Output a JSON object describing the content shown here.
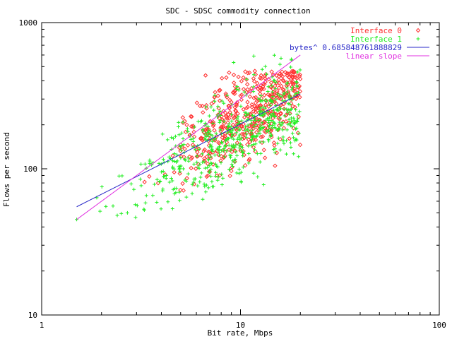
{
  "chart_data": {
    "type": "scatter",
    "title": "SDC - SDSC commodity connection",
    "xlabel": "Bit rate, Mbps",
    "ylabel": "Flows per second",
    "xscale": "log",
    "yscale": "log",
    "xlim": [
      1,
      100
    ],
    "ylim": [
      10,
      1000
    ],
    "xticks": [
      1,
      10,
      100
    ],
    "xtick_labels": [
      "1",
      "10",
      "100"
    ],
    "yticks": [
      10,
      100,
      1000
    ],
    "ytick_labels": [
      "10",
      "100",
      "1000"
    ],
    "grid": false,
    "legend_position": "top-right",
    "series": [
      {
        "name": "Interface 0",
        "kind": "points",
        "marker": "diamond",
        "color": "#ff3030",
        "approximate": true,
        "x_range": [
          3.0,
          20.0
        ],
        "y_range": [
          70,
          470
        ],
        "count": 520,
        "center_fit": {
          "a": 30,
          "b": 0.88,
          "log_spread": 0.16
        }
      },
      {
        "name": "Interface 1",
        "kind": "points",
        "marker": "plus",
        "color": "#22ee22",
        "approximate": true,
        "x_range": [
          1.5,
          20.0
        ],
        "y_range": [
          45,
          600
        ],
        "count": 560,
        "center_fit": {
          "a": 38,
          "b": 0.66,
          "log_spread": 0.15
        },
        "extreme_points": [
          {
            "x": 1.5,
            "y": 45
          },
          {
            "x": 2.4,
            "y": 48
          },
          {
            "x": 2.7,
            "y": 50
          },
          {
            "x": 14.8,
            "y": 598
          },
          {
            "x": 16.0,
            "y": 570
          }
        ]
      },
      {
        "name": "bytes^ 0.685848761888829",
        "kind": "line",
        "color": "#2828c8",
        "x": [
          1.5,
          20
        ],
        "y": [
          55,
          325
        ]
      },
      {
        "name": "linear slope",
        "kind": "line",
        "color": "#e030e0",
        "x": [
          1.5,
          20
        ],
        "y": [
          45,
          600
        ]
      }
    ]
  }
}
